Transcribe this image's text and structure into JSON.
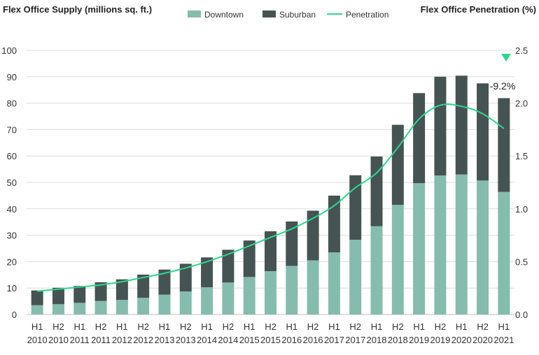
{
  "chart_data": {
    "type": "bar",
    "stacked": true,
    "left_title": "Flex Office Supply (millions sq. ft.)",
    "right_title": "Flex Office Penetration (%)",
    "categories": [
      [
        "H1",
        "2010"
      ],
      [
        "H2",
        "2010"
      ],
      [
        "H1",
        "2011"
      ],
      [
        "H2",
        "2011"
      ],
      [
        "H1",
        "2012"
      ],
      [
        "H2",
        "2012"
      ],
      [
        "H1",
        "2013"
      ],
      [
        "H2",
        "2013"
      ],
      [
        "H1",
        "2014"
      ],
      [
        "H2",
        "2014"
      ],
      [
        "H1",
        "2015"
      ],
      [
        "H2",
        "2015"
      ],
      [
        "H1",
        "2016"
      ],
      [
        "H2",
        "2016"
      ],
      [
        "H1",
        "2017"
      ],
      [
        "H2",
        "2017"
      ],
      [
        "H1",
        "2018"
      ],
      [
        "H2",
        "2018"
      ],
      [
        "H1",
        "2019"
      ],
      [
        "H2",
        "2019"
      ],
      [
        "H1",
        "2020"
      ],
      [
        "H2",
        "2020"
      ],
      [
        "H1",
        "2021"
      ]
    ],
    "series": [
      {
        "name": "Downtown",
        "color": "#86bcad",
        "values": [
          3.5,
          3.9,
          4.4,
          5.1,
          5.5,
          6.3,
          7.5,
          8.7,
          10.3,
          12.1,
          14.2,
          16.4,
          18.4,
          20.5,
          23.5,
          28.3,
          33.4,
          41.5,
          49.7,
          52.6,
          53.0,
          50.7,
          46.4
        ]
      },
      {
        "name": "Suburban",
        "color": "#465353",
        "values": [
          5.6,
          6.2,
          6.4,
          7.1,
          7.8,
          8.8,
          9.5,
          10.5,
          11.3,
          12.4,
          13.8,
          15.1,
          16.8,
          18.8,
          21.5,
          24.4,
          26.4,
          30.3,
          34.1,
          37.4,
          37.4,
          36.8,
          35.5
        ]
      }
    ],
    "line": {
      "name": "Penetration",
      "color": "#2fd58f",
      "values": [
        0.22,
        0.24,
        0.26,
        0.28,
        0.31,
        0.35,
        0.39,
        0.44,
        0.5,
        0.57,
        0.65,
        0.73,
        0.81,
        0.91,
        1.03,
        1.2,
        1.34,
        1.58,
        1.85,
        1.98,
        1.97,
        1.9,
        1.76
      ]
    },
    "y_left": {
      "min": 0,
      "max": 100,
      "ticks": [
        "0",
        "10",
        "20",
        "30",
        "40",
        "50",
        "60",
        "70",
        "80",
        "90",
        "100"
      ]
    },
    "y_right": {
      "min": 0,
      "max": 2.5,
      "ticks": [
        "0.0",
        "0.5",
        "1.0",
        "1.5",
        "2.0",
        "2.5"
      ]
    },
    "annotation": {
      "text": "-9.2%",
      "marker": "down-triangle",
      "marker_color": "#2fd58f"
    },
    "gridlines": true,
    "legend_position": "top"
  }
}
